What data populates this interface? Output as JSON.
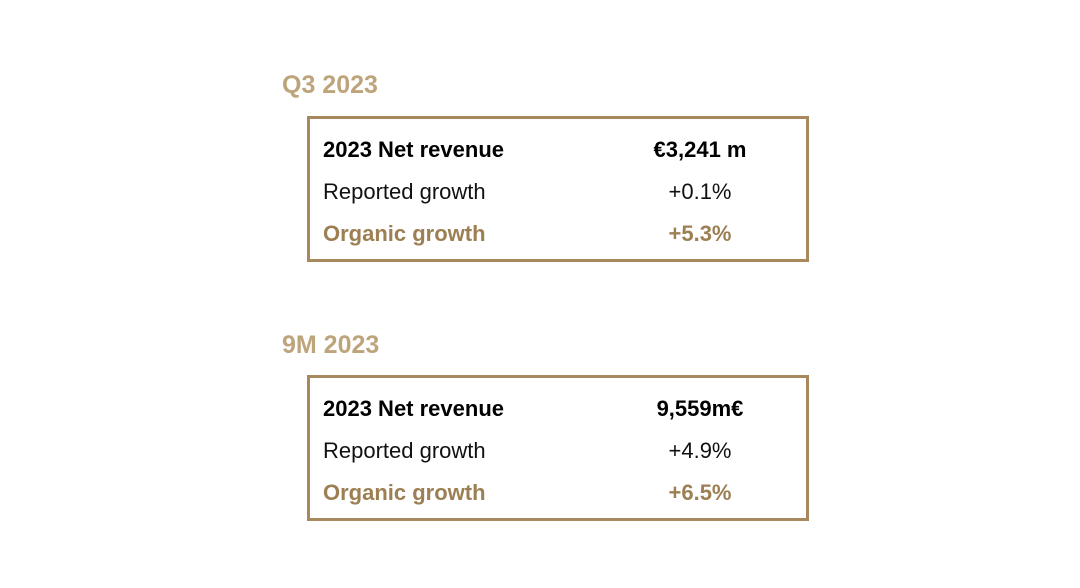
{
  "sections": [
    {
      "title": "Q3 2023",
      "rows": [
        {
          "label": "2023 Net revenue",
          "value": "€3,241 m"
        },
        {
          "label": "Reported growth",
          "value": "+0.1%"
        },
        {
          "label": "Organic growth",
          "value": "+5.3%"
        }
      ]
    },
    {
      "title": "9M 2023",
      "rows": [
        {
          "label": "2023 Net revenue",
          "value": "9,559m€"
        },
        {
          "label": "Reported growth",
          "value": "+4.9%"
        },
        {
          "label": "Organic growth",
          "value": "+6.5%"
        }
      ]
    }
  ],
  "colors": {
    "title": "#bda47a",
    "border": "#a8895f",
    "accent_text": "#9c7f52"
  }
}
